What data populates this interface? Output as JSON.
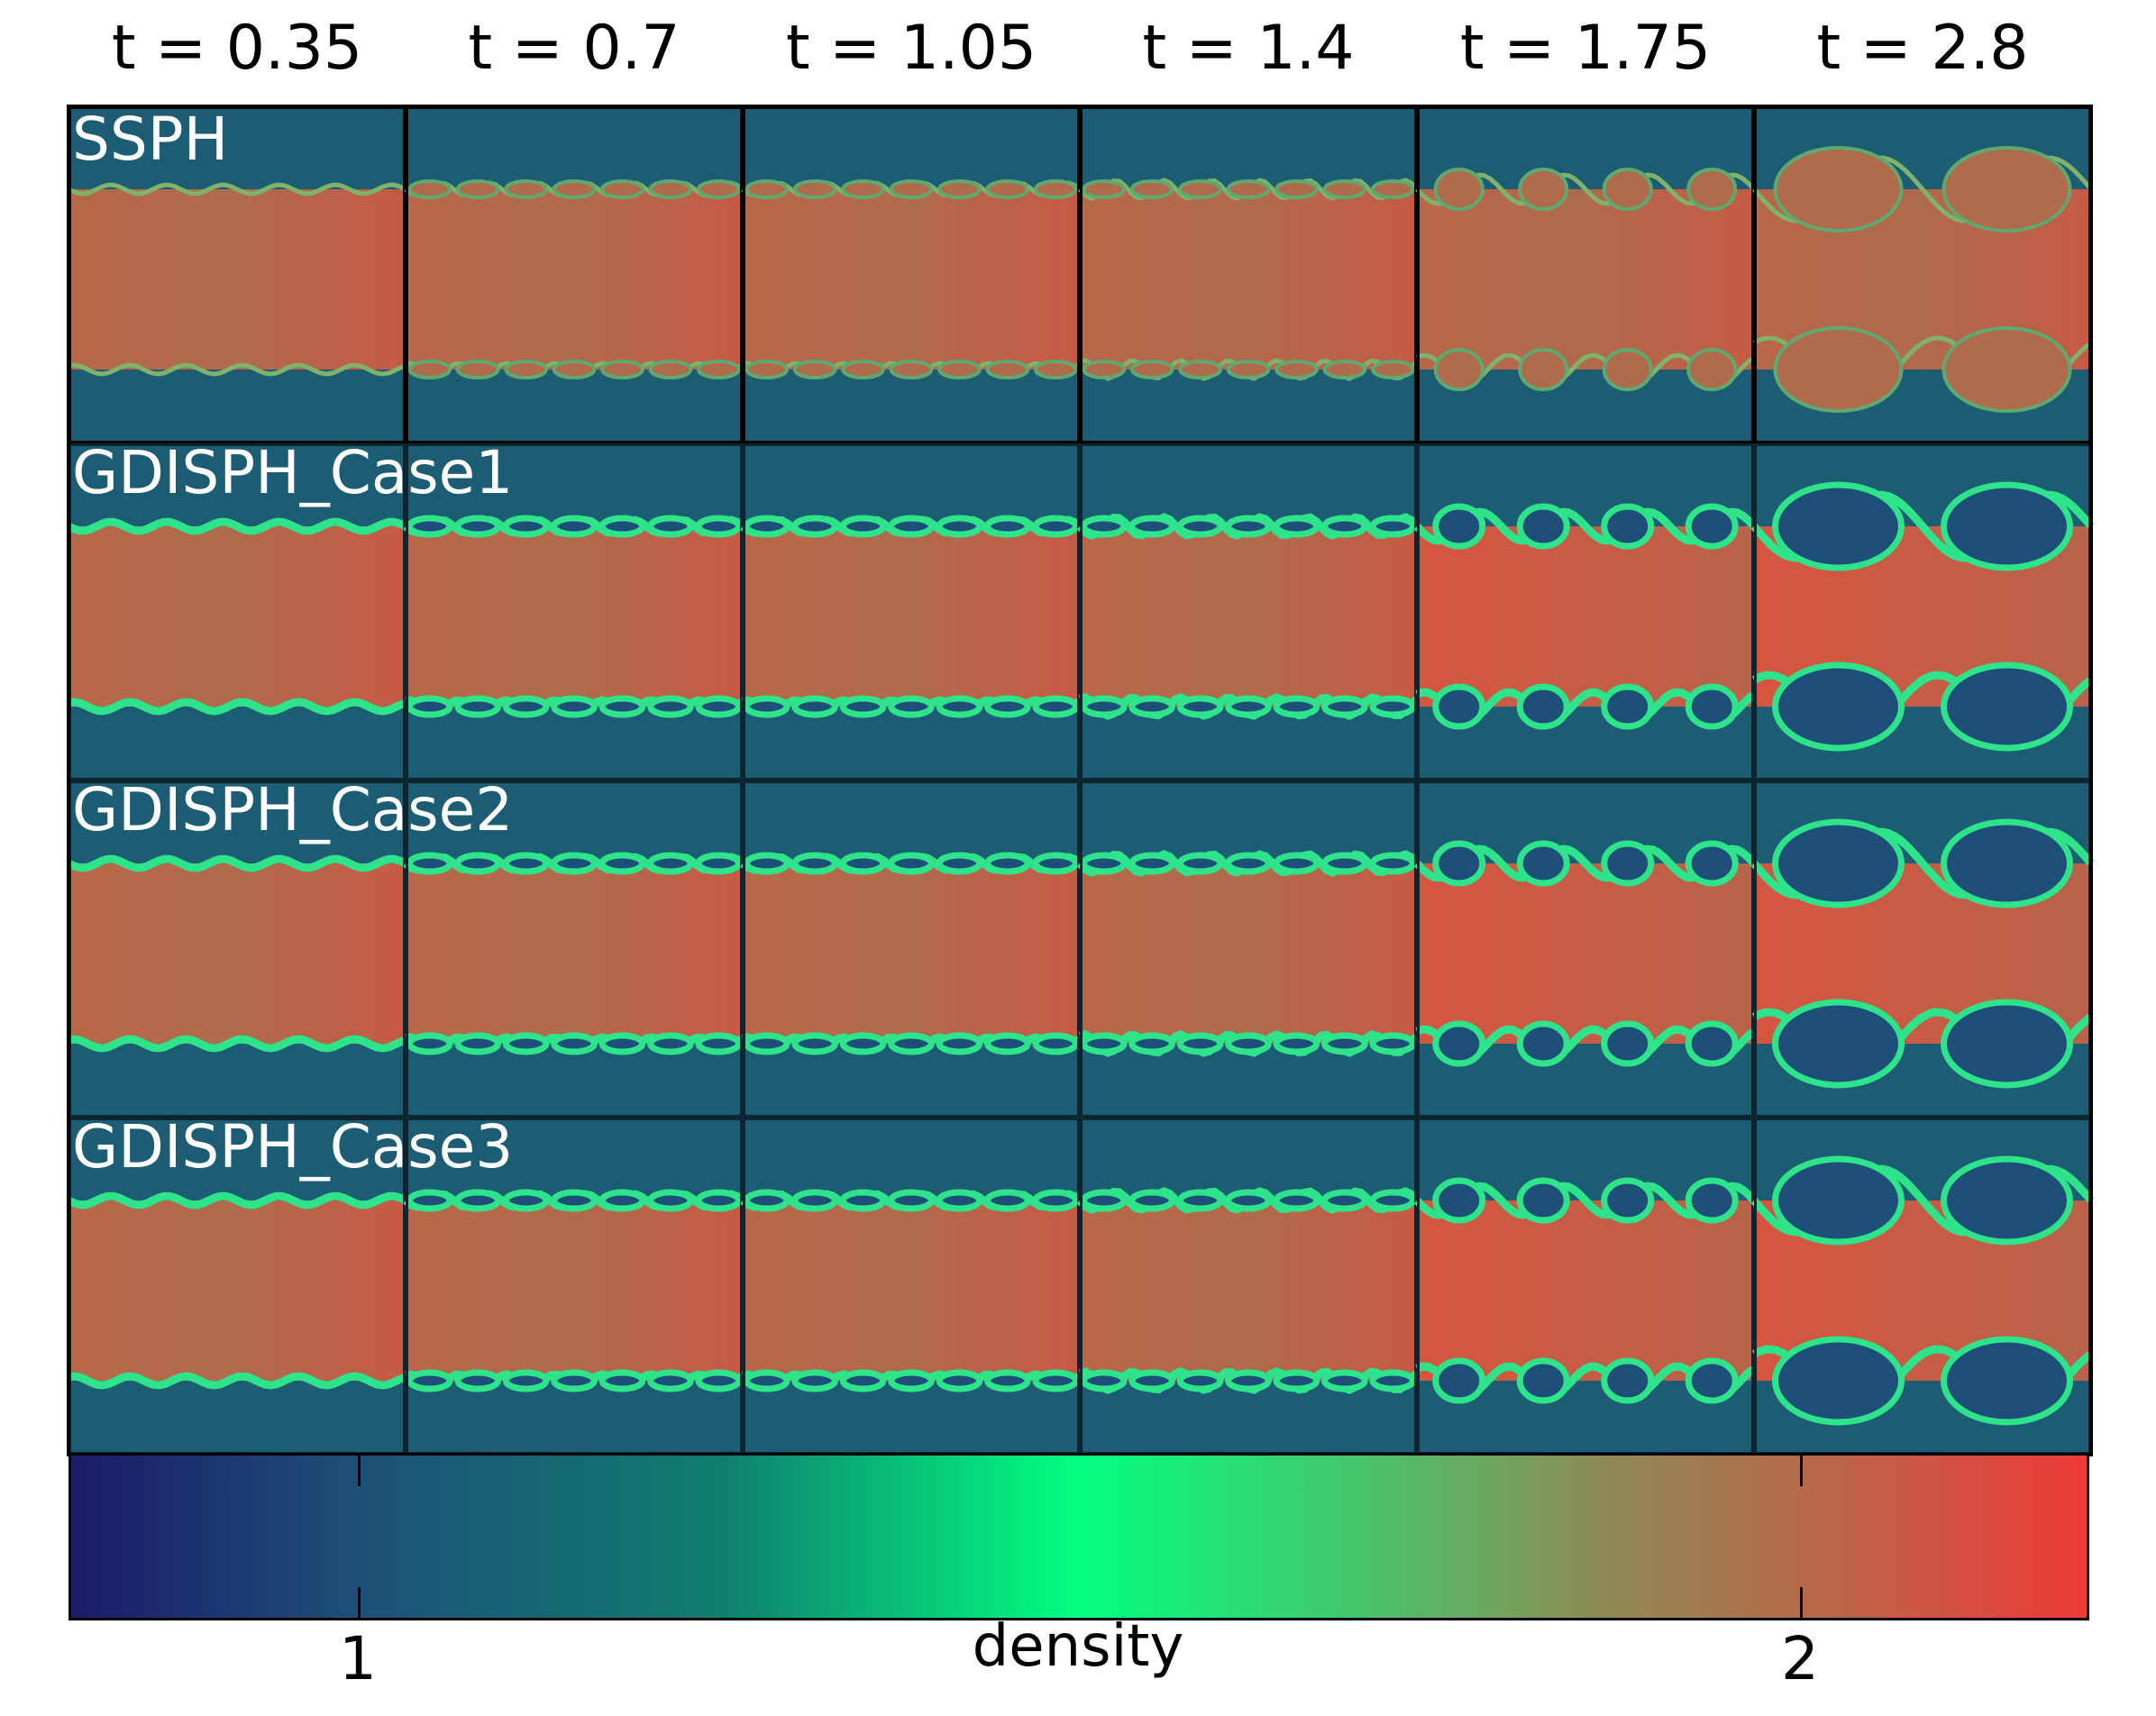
{
  "figure": {
    "column_titles": [
      "t = 0.35",
      "t = 0.7",
      "t = 1.05",
      "t = 1.4",
      "t = 1.75",
      "t = 2.8"
    ],
    "row_labels": [
      "SSPH",
      "GDISPH_Case1",
      "GDISPH_Case2",
      "GDISPH_Case3"
    ]
  },
  "colorbar": {
    "label": "density",
    "ticks": [
      {
        "label": "1",
        "value": 1
      },
      {
        "label": "2",
        "value": 2
      }
    ],
    "range": [
      0.8,
      2.2
    ],
    "colors": {
      "low": "#1c1b6a",
      "background_fluid": "#1d5d73",
      "interface": "#2ee38a",
      "dense_fluid": "#b1674a",
      "high": "#ee3a38"
    }
  }
}
